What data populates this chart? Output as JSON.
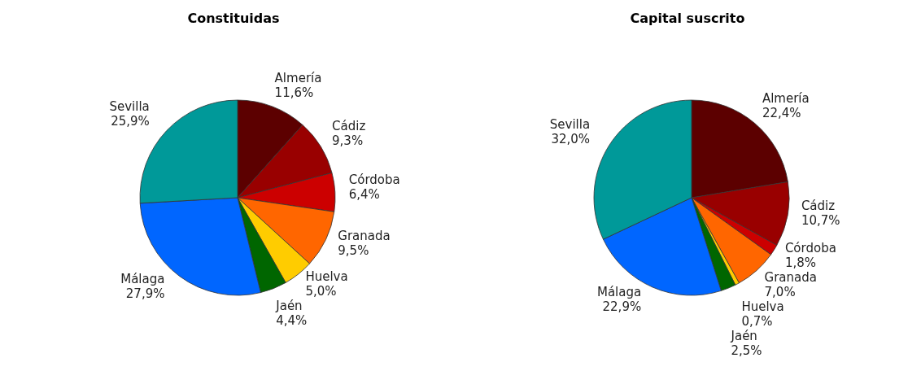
{
  "chart_data": [
    {
      "type": "pie",
      "title": "Constituidas",
      "categories": [
        "Almería",
        "Cádiz",
        "Córdoba",
        "Granada",
        "Huelva",
        "Jaén",
        "Málaga",
        "Sevilla"
      ],
      "values": [
        11.6,
        9.3,
        6.4,
        9.5,
        5.0,
        4.4,
        27.9,
        25.9
      ],
      "value_labels": [
        "11,6%",
        "9,3%",
        "6,4%",
        "9,5%",
        "5,0%",
        "4,4%",
        "27,9%",
        "25,9%"
      ],
      "colors": [
        "#5c0000",
        "#990000",
        "#cc0000",
        "#ff6600",
        "#ffcc00",
        "#006600",
        "#0066ff",
        "#009999"
      ]
    },
    {
      "type": "pie",
      "title": "Capital suscrito",
      "categories": [
        "Almería",
        "Cádiz",
        "Córdoba",
        "Granada",
        "Huelva",
        "Jaén",
        "Málaga",
        "Sevilla"
      ],
      "values": [
        22.4,
        10.7,
        1.8,
        7.0,
        0.7,
        2.5,
        22.9,
        32.0
      ],
      "value_labels": [
        "22,4%",
        "10,7%",
        "1,8%",
        "7,0%",
        "0,7%",
        "2,5%",
        "22,9%",
        "32,0%"
      ],
      "colors": [
        "#5c0000",
        "#990000",
        "#cc0000",
        "#ff6600",
        "#ffcc00",
        "#006600",
        "#0066ff",
        "#009999"
      ]
    }
  ]
}
